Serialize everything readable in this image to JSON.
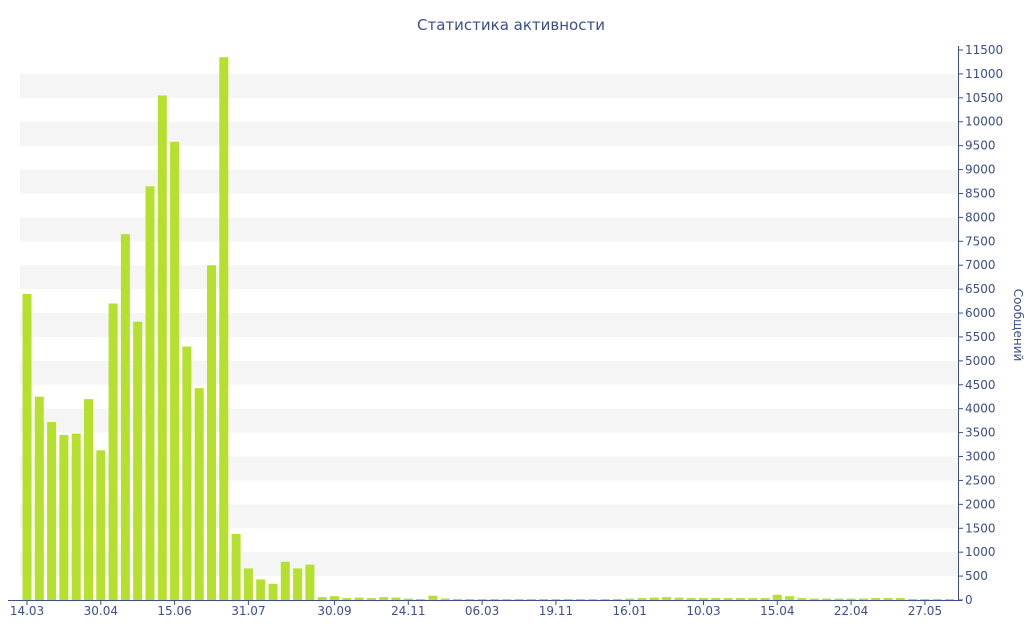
{
  "chart_data": {
    "type": "bar",
    "title": "Статистика активности",
    "ylabel": "Сообщений",
    "xlabel": "",
    "ylim": [
      0,
      11500
    ],
    "y_ticks": [
      0,
      500,
      1000,
      1500,
      2000,
      2500,
      3000,
      3500,
      4000,
      4500,
      5000,
      5500,
      6000,
      6500,
      7000,
      7500,
      8000,
      8500,
      9000,
      9500,
      10000,
      10500,
      11000,
      11500
    ],
    "x_tick_labels": [
      {
        "label": "14.03",
        "index": 0
      },
      {
        "label": "30.04",
        "index": 6
      },
      {
        "label": "15.06",
        "index": 12
      },
      {
        "label": "31.07",
        "index": 18
      },
      {
        "label": "30.09",
        "index": 25
      },
      {
        "label": "24.11",
        "index": 31
      },
      {
        "label": "06.03",
        "index": 37
      },
      {
        "label": "19.11",
        "index": 43
      },
      {
        "label": "16.01",
        "index": 49
      },
      {
        "label": "10.03",
        "index": 55
      },
      {
        "label": "15.04",
        "index": 61
      },
      {
        "label": "22.04",
        "index": 67
      },
      {
        "label": "27.05",
        "index": 73
      }
    ],
    "values": [
      6400,
      4250,
      3720,
      3450,
      3480,
      4200,
      3130,
      6200,
      7650,
      5820,
      8650,
      10550,
      9580,
      5300,
      4430,
      7000,
      11350,
      1380,
      660,
      430,
      340,
      800,
      660,
      740,
      60,
      80,
      40,
      50,
      40,
      60,
      50,
      30,
      20,
      90,
      30,
      20,
      20,
      20,
      20,
      20,
      20,
      20,
      20,
      20,
      20,
      20,
      20,
      20,
      20,
      30,
      40,
      50,
      60,
      50,
      40,
      40,
      40,
      40,
      40,
      40,
      40,
      110,
      80,
      40,
      30,
      30,
      30,
      30,
      30,
      40,
      40,
      40,
      20,
      20,
      20,
      20
    ],
    "grid": true,
    "bar_color": "#b5e02e",
    "grid_band_color": "#f5f5f5",
    "text_color": "#3b4f8a",
    "axis_position": "right"
  }
}
